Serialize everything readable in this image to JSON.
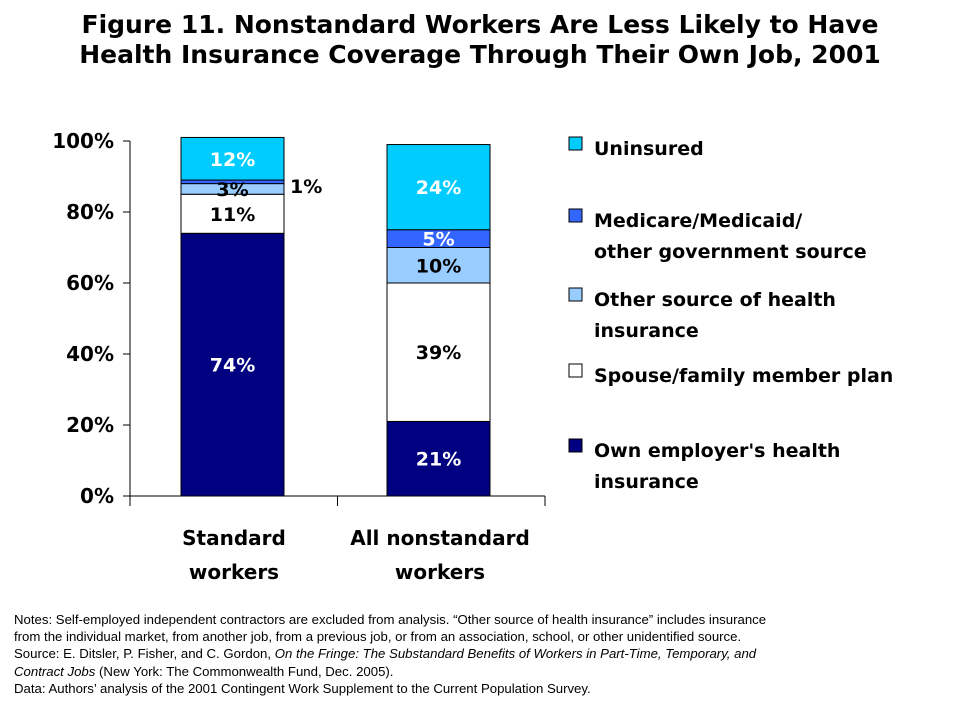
{
  "title": {
    "line1": "Figure 11. Nonstandard Workers Are Less Likely to Have",
    "line2": "Health Insurance Coverage Through Their Own Job, 2001"
  },
  "chart_data": {
    "type": "bar",
    "stacked": true,
    "categories": [
      [
        "Standard",
        "workers"
      ],
      [
        "All nonstandard",
        "workers"
      ]
    ],
    "ylim": [
      0,
      100
    ],
    "yticks": [
      0,
      20,
      40,
      60,
      80,
      100
    ],
    "ytick_labels": [
      "0%",
      "20%",
      "40%",
      "60%",
      "80%",
      "100%"
    ],
    "legend_position": "right",
    "series": [
      {
        "name": [
          "Own employer's health",
          "insurance"
        ],
        "color": "#000080",
        "label_color": "#ffffff",
        "values": [
          74,
          21
        ],
        "labels": [
          "74%",
          "21%"
        ]
      },
      {
        "name": [
          "Spouse/family member plan"
        ],
        "color": "#ffffff",
        "label_color": "#000000",
        "values": [
          11,
          39
        ],
        "labels": [
          "11%",
          "39%"
        ]
      },
      {
        "name": [
          "Other source of health",
          "insurance"
        ],
        "color": "#99ccff",
        "label_color": "#000000",
        "values": [
          3,
          10
        ],
        "labels": [
          "3%",
          "10%"
        ]
      },
      {
        "name": [
          "Medicare/Medicaid/",
          "other government source"
        ],
        "color": "#3366ff",
        "label_color": "#ffffff",
        "values": [
          1,
          5
        ],
        "labels": [
          "1%",
          "5%"
        ]
      },
      {
        "name": [
          "Uninsured"
        ],
        "color": "#00ccff",
        "label_color": "#ffffff",
        "values": [
          12,
          24
        ],
        "labels": [
          "12%",
          "24%"
        ]
      }
    ]
  },
  "notes": {
    "line1": "Notes: Self-employed independent contractors are excluded from analysis. “Other source of health insurance” includes insurance",
    "line2": "from the individual market, from another job, from a previous job, or from an association, school, or other unidentified source.",
    "line3_prefix": "Source: E. Ditsler, P. Fisher, and C. Gordon, ",
    "line3_italic": "On the Fringe: The Substandard Benefits of Workers in Part-Time, Temporary, and",
    "line4_italic": "Contract Jobs",
    "line4_suffix": " (New York: The Commonwealth Fund, Dec. 2005).",
    "line5": "Data: Authors’ analysis of the 2001 Contingent Work Supplement to the Current Population Survey."
  }
}
